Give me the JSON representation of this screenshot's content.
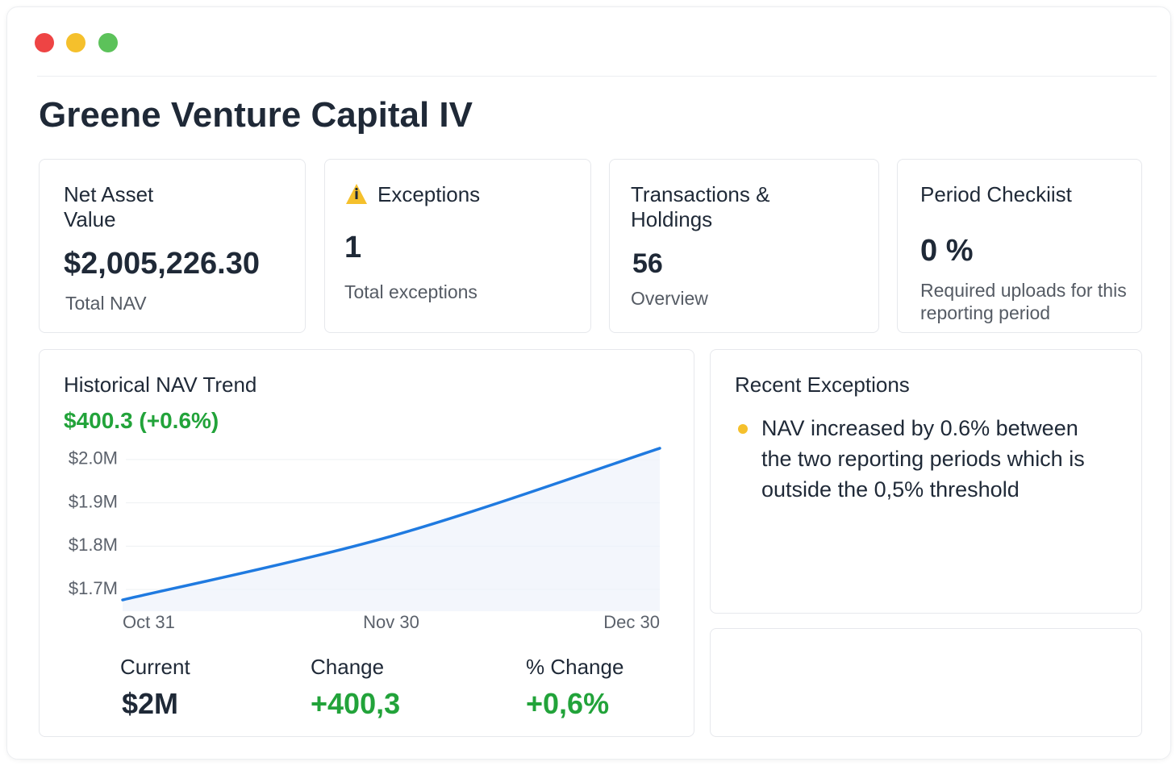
{
  "header": {
    "title": "Greene Venture Capital IV"
  },
  "cards": [
    {
      "title": "Net Asset Value",
      "value": "$2,005,226.30",
      "caption": "Total NAV"
    },
    {
      "title": "Exceptions",
      "value": "1",
      "caption": "Total exceptions"
    },
    {
      "title": "Transactions & Holdings",
      "value": "56",
      "caption": "Overview"
    },
    {
      "title": "Period Checkiist",
      "value": "0 %",
      "caption": "Required uploads for this reporting period"
    }
  ],
  "trend": {
    "title": "Historical NAV Trend",
    "change": "$400.3 (+0.6%)",
    "chart_data": {
      "type": "line",
      "categories": [
        "Oct 31",
        "Nov 30",
        "Dec 30"
      ],
      "series": [
        {
          "color": "#1f7ae0",
          "values": [
            1676000,
            1823000,
            2026000
          ]
        }
      ],
      "ylim": [
        1650000,
        2050000
      ],
      "yticks": [
        {
          "value": 1700000,
          "label": "$1.7M"
        },
        {
          "value": 1800000,
          "label": "$1.8M"
        },
        {
          "value": 1900000,
          "label": "$1.9M"
        },
        {
          "value": 2000000,
          "label": "$2.0M"
        }
      ],
      "grid": true
    },
    "stats": [
      {
        "label": "Current",
        "value": "$2M"
      },
      {
        "label": "Change",
        "value": "+400,3"
      },
      {
        "label": "% Change",
        "value": "+0,6%"
      }
    ]
  },
  "exceptions": {
    "title": "Recent Exceptions",
    "items": [
      "NAV increased by 0.6% between the two reporting periods which is outside the 0,5% threshold"
    ]
  }
}
